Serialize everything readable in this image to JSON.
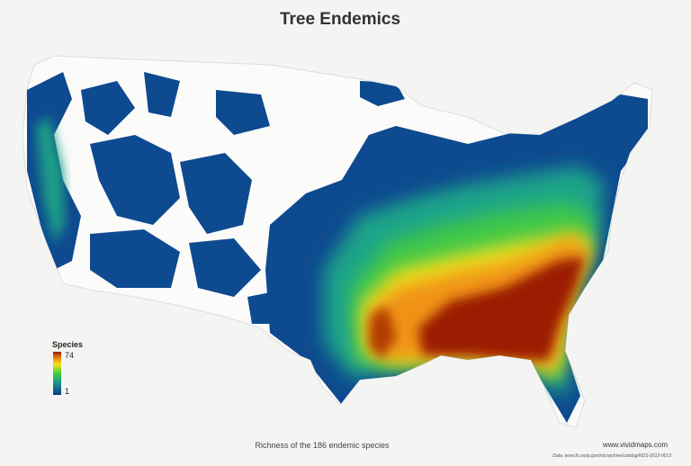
{
  "title": "Tree Endemics",
  "legend": {
    "title": "Species",
    "max": 74,
    "min": 1
  },
  "caption": "Richness of the 186 endemic species",
  "credit": "www.vividmaps.com",
  "source": "Data: www.fs.usda.gov/rds/archive/catalog/RDS-2013-0013"
}
